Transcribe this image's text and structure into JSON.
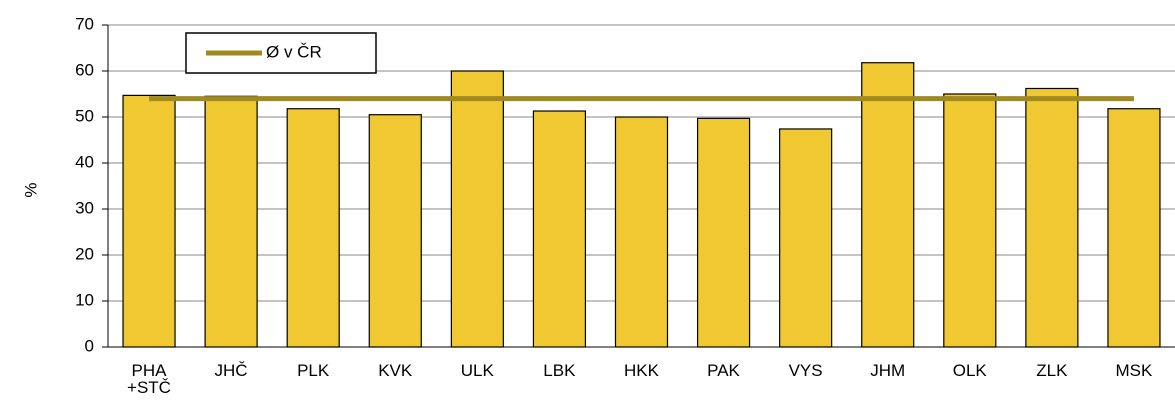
{
  "chart_data": {
    "type": "bar",
    "y_label": "%",
    "categories": [
      "PHA\n+STČ",
      "JHČ",
      "PLK",
      "KVK",
      "ULK",
      "LBK",
      "HKK",
      "PAK",
      "VYS",
      "JHM",
      "OLK",
      "ZLK",
      "MSK"
    ],
    "series": [
      {
        "type": "bar",
        "color": "#f0c832",
        "values": [
          54.7,
          54.5,
          51.8,
          50.5,
          60,
          51.3,
          50,
          49.7,
          47.4,
          61.8,
          55,
          56.2,
          51.8
        ]
      },
      {
        "type": "line",
        "name": "Ø v ČR",
        "color": "#a08a20",
        "values": [
          54,
          54,
          54,
          54,
          54,
          54,
          54,
          54,
          54,
          54,
          54,
          54,
          54
        ]
      }
    ],
    "ylim": [
      0,
      70
    ],
    "yticks": [
      0,
      10,
      20,
      30,
      40,
      50,
      60,
      70
    ],
    "grid": true,
    "legend": "top-left"
  }
}
